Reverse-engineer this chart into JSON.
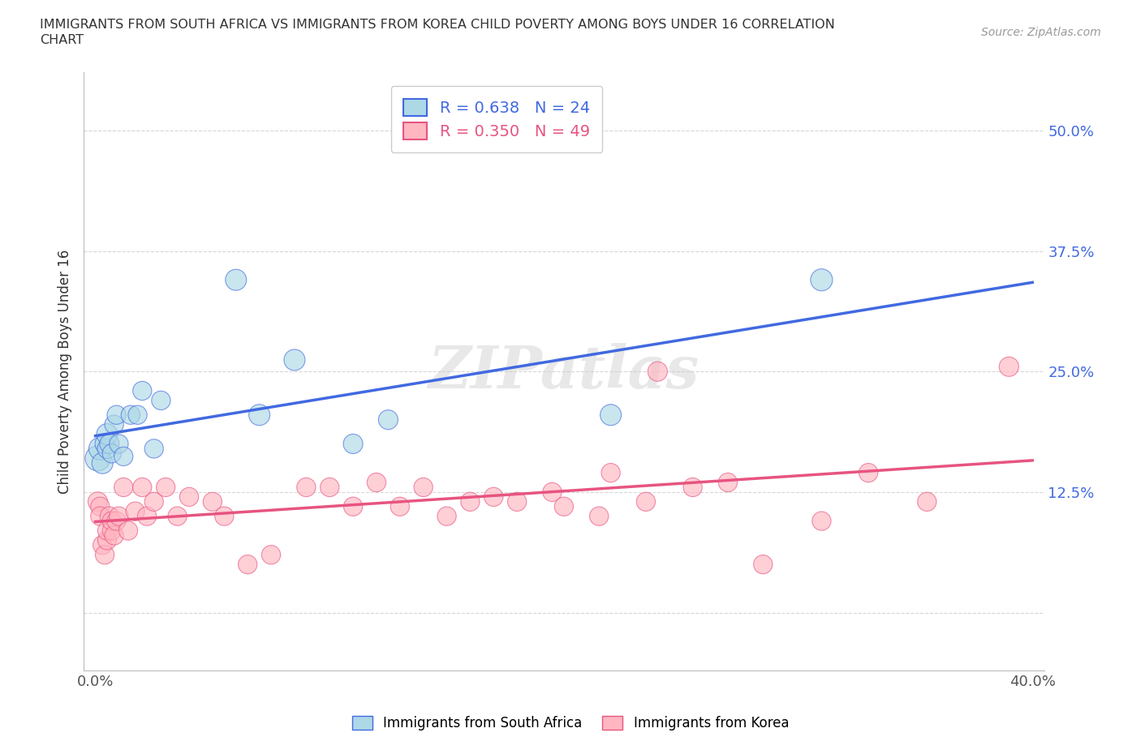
{
  "title_line1": "IMMIGRANTS FROM SOUTH AFRICA VS IMMIGRANTS FROM KOREA CHILD POVERTY AMONG BOYS UNDER 16 CORRELATION",
  "title_line2": "CHART",
  "source": "Source: ZipAtlas.com",
  "ylabel": "Child Poverty Among Boys Under 16",
  "xlim": [
    -0.005,
    0.405
  ],
  "ylim": [
    -0.06,
    0.56
  ],
  "xticks": [
    0.0,
    0.1,
    0.2,
    0.3,
    0.4
  ],
  "xticklabels": [
    "0.0%",
    "",
    "",
    "",
    "40.0%"
  ],
  "yticks": [
    0.0,
    0.125,
    0.25,
    0.375,
    0.5
  ],
  "yticklabels": [
    "",
    "12.5%",
    "25.0%",
    "37.5%",
    "50.0%"
  ],
  "color_sa": "#ADD8E6",
  "color_korea": "#FFB6C1",
  "line_color_sa": "#4169E1",
  "line_color_korea": "#E75480",
  "R_sa": 0.638,
  "N_sa": 24,
  "R_korea": 0.35,
  "N_korea": 49,
  "watermark": "ZIPatlas",
  "sa_x": [
    0.001,
    0.002,
    0.003,
    0.004,
    0.005,
    0.005,
    0.006,
    0.007,
    0.008,
    0.009,
    0.01,
    0.012,
    0.015,
    0.018,
    0.02,
    0.025,
    0.028,
    0.06,
    0.07,
    0.085,
    0.11,
    0.125,
    0.22,
    0.31
  ],
  "sa_y": [
    0.16,
    0.17,
    0.155,
    0.175,
    0.17,
    0.185,
    0.175,
    0.165,
    0.195,
    0.205,
    0.175,
    0.162,
    0.205,
    0.205,
    0.23,
    0.17,
    0.22,
    0.345,
    0.205,
    0.262,
    0.175,
    0.2,
    0.205,
    0.345
  ],
  "korea_x": [
    0.001,
    0.002,
    0.002,
    0.003,
    0.004,
    0.005,
    0.005,
    0.006,
    0.007,
    0.007,
    0.008,
    0.009,
    0.01,
    0.012,
    0.014,
    0.017,
    0.02,
    0.022,
    0.025,
    0.03,
    0.035,
    0.04,
    0.05,
    0.055,
    0.065,
    0.075,
    0.09,
    0.1,
    0.11,
    0.12,
    0.13,
    0.14,
    0.15,
    0.16,
    0.17,
    0.18,
    0.195,
    0.2,
    0.215,
    0.22,
    0.235,
    0.24,
    0.255,
    0.27,
    0.285,
    0.31,
    0.33,
    0.355,
    0.39
  ],
  "korea_y": [
    0.115,
    0.11,
    0.1,
    0.07,
    0.06,
    0.075,
    0.085,
    0.1,
    0.085,
    0.095,
    0.08,
    0.095,
    0.1,
    0.13,
    0.085,
    0.105,
    0.13,
    0.1,
    0.115,
    0.13,
    0.1,
    0.12,
    0.115,
    0.1,
    0.05,
    0.06,
    0.13,
    0.13,
    0.11,
    0.135,
    0.11,
    0.13,
    0.1,
    0.115,
    0.12,
    0.115,
    0.125,
    0.11,
    0.1,
    0.145,
    0.115,
    0.25,
    0.13,
    0.135,
    0.05,
    0.095,
    0.145,
    0.115,
    0.255
  ],
  "sa_size": [
    500,
    400,
    350,
    300,
    300,
    350,
    300,
    280,
    280,
    280,
    280,
    280,
    280,
    280,
    280,
    280,
    280,
    350,
    350,
    350,
    300,
    300,
    350,
    380
  ],
  "korea_size": [
    300,
    280,
    280,
    280,
    280,
    280,
    280,
    280,
    280,
    280,
    280,
    280,
    280,
    280,
    280,
    280,
    280,
    280,
    280,
    280,
    280,
    280,
    280,
    280,
    280,
    280,
    280,
    280,
    280,
    280,
    280,
    280,
    280,
    280,
    280,
    280,
    280,
    280,
    280,
    280,
    280,
    300,
    280,
    280,
    280,
    280,
    280,
    280,
    300
  ]
}
